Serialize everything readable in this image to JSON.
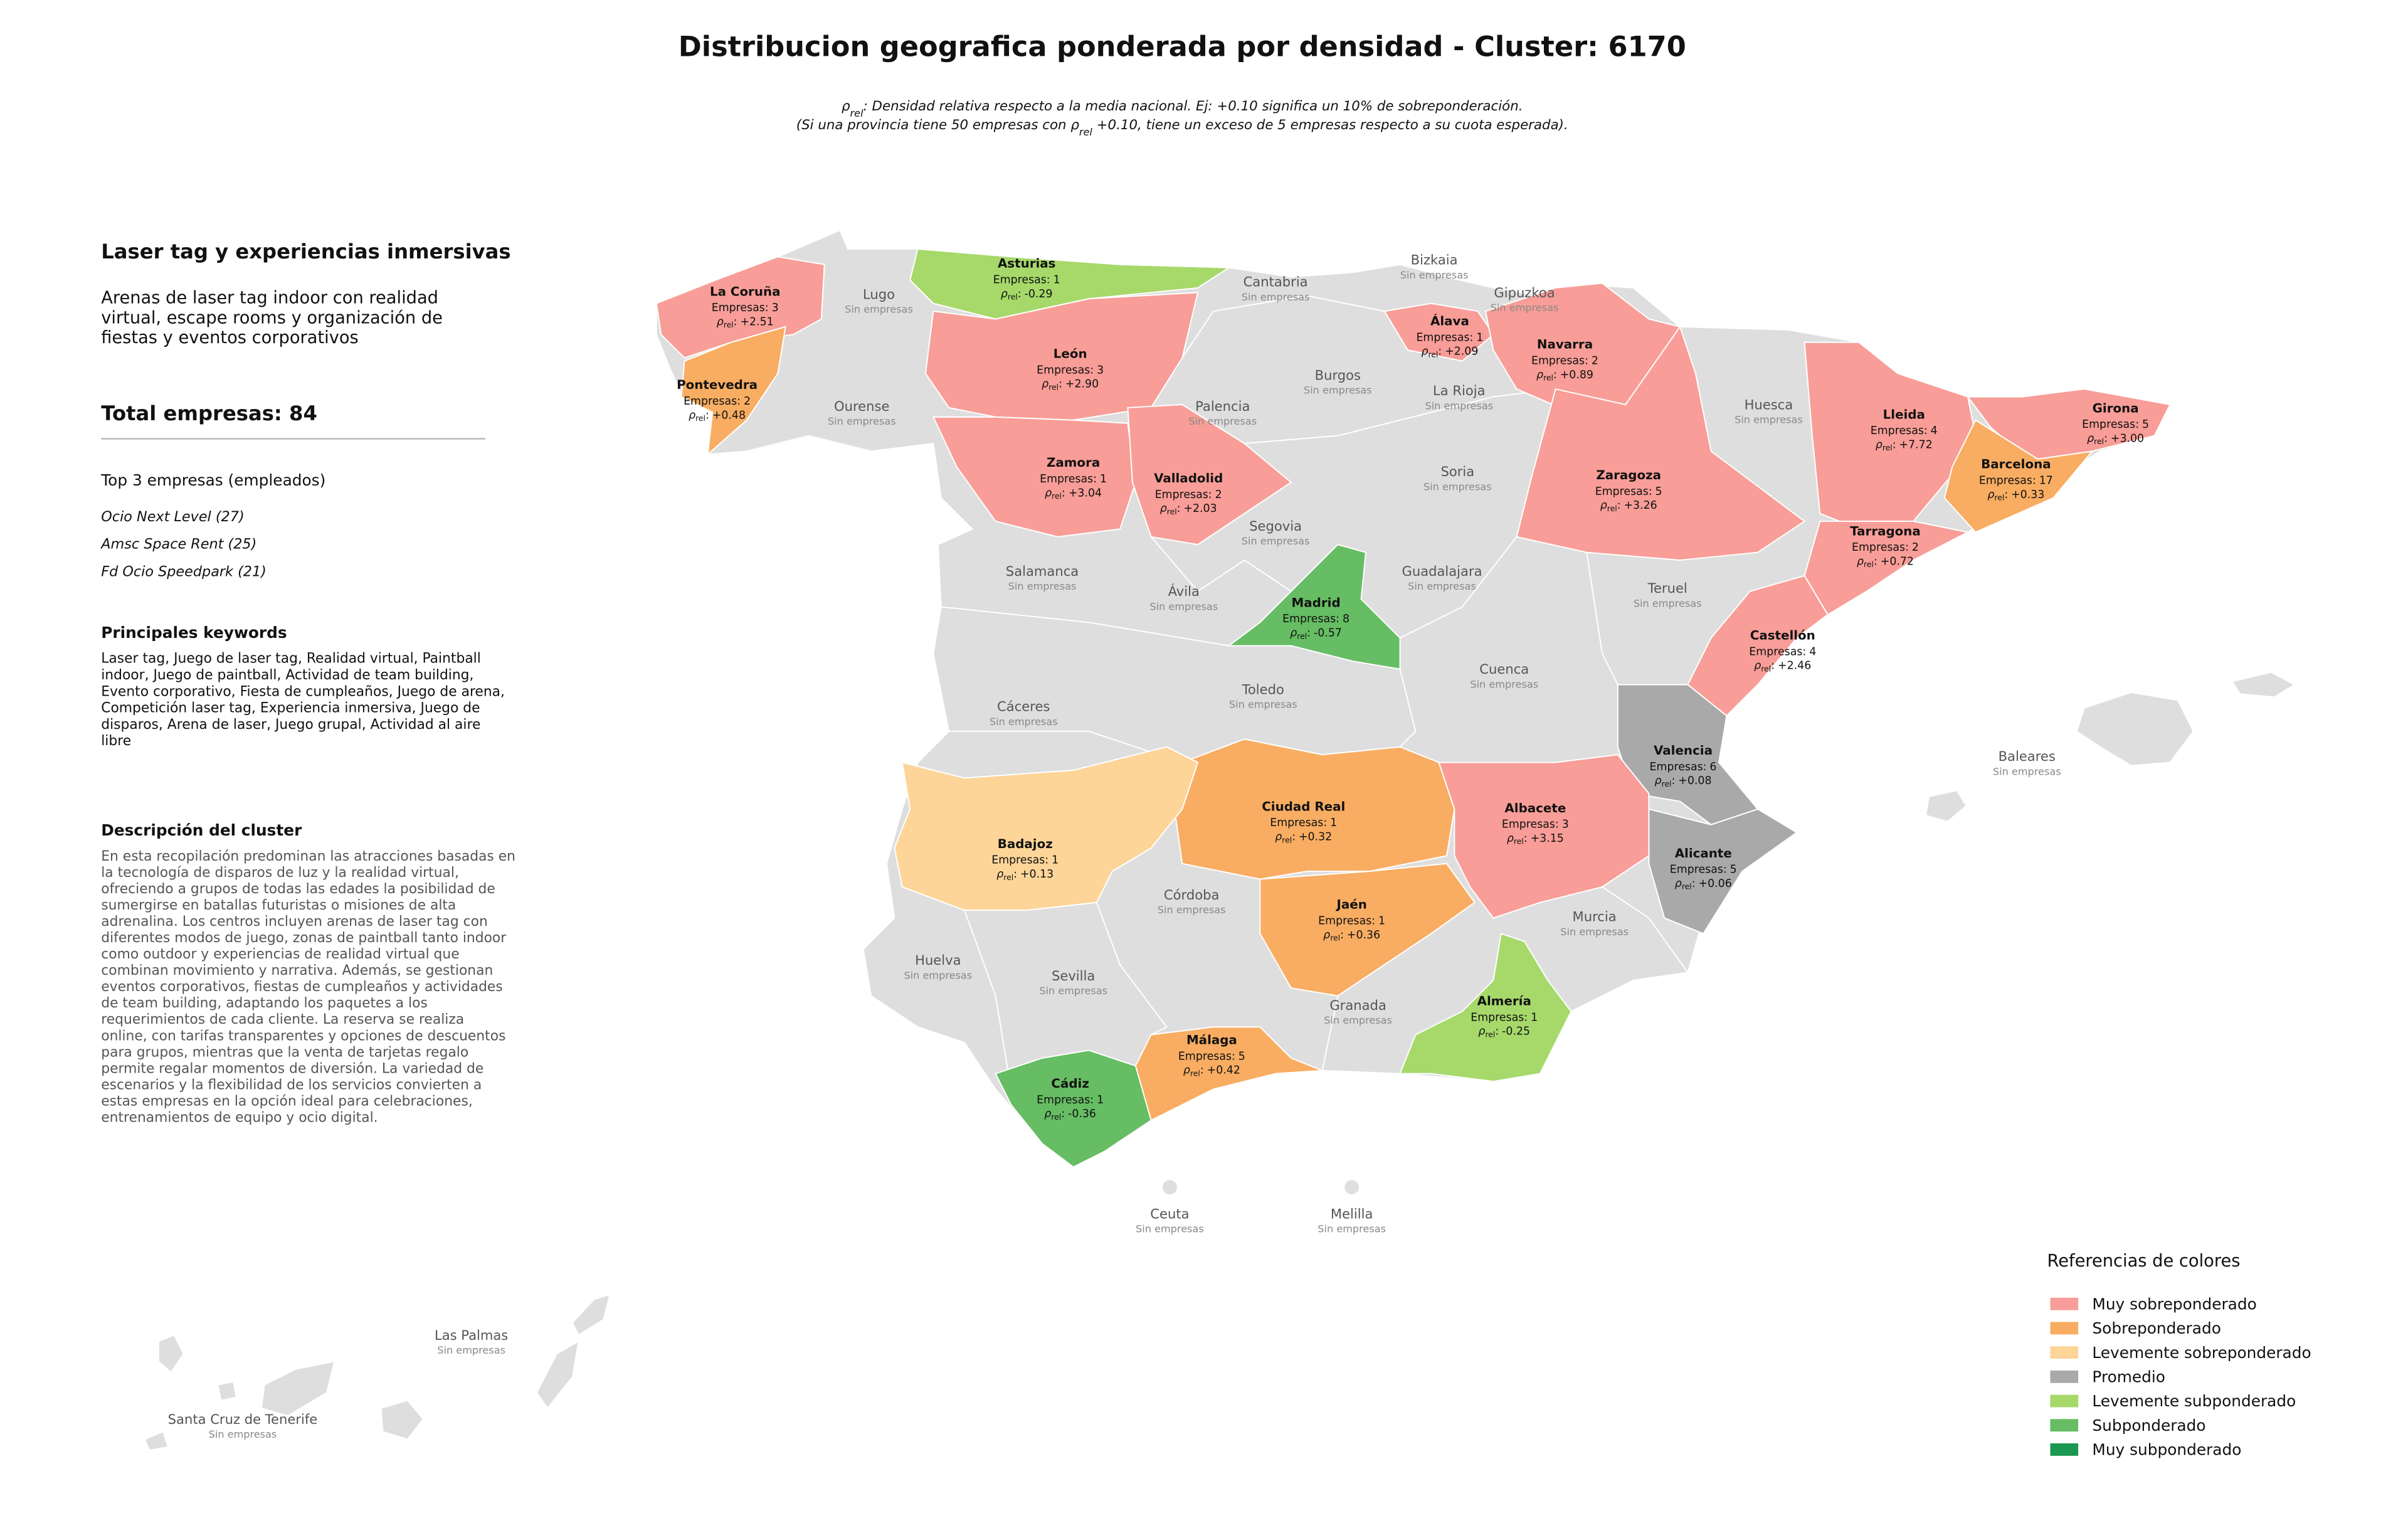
{
  "header": {
    "title": "Distribucion geografica ponderada por densidad - Cluster: 6170",
    "subtitle_lines": [
      [
        {
          "text": "ρ"
        },
        {
          "text": "rel",
          "sub": true
        },
        {
          "text": ": Densidad relativa respecto a la media nacional. Ej: +0.10 significa un 10% de sobreponderación."
        }
      ],
      [
        {
          "text": "(Si una provincia tiene 50 empresas con ρ"
        },
        {
          "text": "rel",
          "sub": true
        },
        {
          "text": " +0.10, tiene un exceso de 5 empresas respecto a su cuota esperada)."
        }
      ]
    ]
  },
  "panel": {
    "cluster_name": "Laser tag y experiencias inmersivas",
    "description_lines": [
      "Arenas de laser tag indoor con realidad",
      "virtual, escape rooms y organización de",
      "fiestas y eventos corporativos"
    ],
    "total_label": "Total empresas:",
    "total": 84,
    "top_title": "Top 3 empresas (empleados)",
    "top_companies": [
      "Ocio Next Level (27)",
      "Amsc Space Rent (25)",
      "Fd Ocio Speedpark (21)"
    ],
    "keywords_title": "Principales keywords",
    "keywords_lines": [
      "Laser tag, Juego de laser tag, Realidad virtual, Paintball",
      "indoor, Juego de paintball, Actividad de team building,",
      "Evento corporativo, Fiesta de cumpleaños, Juego de arena,",
      "Competición laser tag, Experiencia inmersiva, Juego de",
      "disparos, Arena de laser, Juego grupal, Actividad al aire",
      "libre"
    ],
    "cluster_description_title": "Descripción del cluster",
    "cluster_description_lines": [
      "En esta recopilación predominan las atracciones basadas en",
      "la tecnología de disparos de luz y la realidad virtual,",
      "ofreciendo a grupos de todas las edades la posibilidad de",
      "sumergirse en batallas futuristas o misiones de alta",
      "adrenalina. Los centros incluyen arenas de laser tag con",
      "diferentes modos de juego, zonas de paintball tanto indoor",
      "como outdoor y experiencias de realidad virtual que",
      "combinan movimiento y narrativa. Además, se gestionan",
      "eventos corporativos, fiestas de cumpleaños y actividades",
      "de team building, adaptando los paquetes a los",
      "requerimientos de cada cliente. La reserva se realiza",
      "online, con tarifas transparentes y opciones de descuentos",
      "para grupos, mientras que la venta de tarjetas regalo",
      "permite regalar momentos de diversión. La variedad de",
      "escenarios y la flexibilidad de los servicios convierten a",
      "estas empresas en la opción ideal para celebraciones,",
      "entrenamientos de equipo y ocio digital."
    ]
  },
  "map": {
    "companies_label": "Empresas:",
    "rho_label": {
      "symbol": "ρ",
      "subscript": "rel",
      "suffix": ":"
    },
    "no_companies_label": "Sin empresas",
    "no_data_color": "#dedede",
    "provinces": [
      {
        "name": "La Coruña",
        "companies": 3,
        "rho": 2.51,
        "rho_label": "+2.51",
        "category": 0
      },
      {
        "name": "Pontevedra",
        "companies": 2,
        "rho": 0.48,
        "rho_label": "+0.48",
        "category": 1
      },
      {
        "name": "Asturias",
        "companies": 1,
        "rho": -0.29,
        "rho_label": "-0.29",
        "category": 4
      },
      {
        "name": "León",
        "companies": 3,
        "rho": 2.9,
        "rho_label": "+2.90",
        "category": 0
      },
      {
        "name": "Zamora",
        "companies": 1,
        "rho": 3.04,
        "rho_label": "+3.04",
        "category": 0
      },
      {
        "name": "Valladolid",
        "companies": 2,
        "rho": 2.03,
        "rho_label": "+2.03",
        "category": 0
      },
      {
        "name": "Álava",
        "companies": 1,
        "rho": 2.09,
        "rho_label": "+2.09",
        "category": 0
      },
      {
        "name": "Navarra",
        "companies": 2,
        "rho": 0.89,
        "rho_label": "+0.89",
        "category": 0
      },
      {
        "name": "Zaragoza",
        "companies": 5,
        "rho": 3.26,
        "rho_label": "+3.26",
        "category": 0
      },
      {
        "name": "Lleida",
        "companies": 4,
        "rho": 7.72,
        "rho_label": "+7.72",
        "category": 0
      },
      {
        "name": "Girona",
        "companies": 5,
        "rho": 3.0,
        "rho_label": "+3.00",
        "category": 0
      },
      {
        "name": "Barcelona",
        "companies": 17,
        "rho": 0.33,
        "rho_label": "+0.33",
        "category": 1
      },
      {
        "name": "Tarragona",
        "companies": 2,
        "rho": 0.72,
        "rho_label": "+0.72",
        "category": 0
      },
      {
        "name": "Castellón",
        "companies": 4,
        "rho": 2.46,
        "rho_label": "+2.46",
        "category": 0
      },
      {
        "name": "Valencia",
        "companies": 6,
        "rho": 0.08,
        "rho_label": "+0.08",
        "category": 3
      },
      {
        "name": "Alicante",
        "companies": 5,
        "rho": 0.06,
        "rho_label": "+0.06",
        "category": 3
      },
      {
        "name": "Madrid",
        "companies": 8,
        "rho": -0.57,
        "rho_label": "-0.57",
        "category": 5
      },
      {
        "name": "Ciudad Real",
        "companies": 1,
        "rho": 0.32,
        "rho_label": "+0.32",
        "category": 1
      },
      {
        "name": "Albacete",
        "companies": 3,
        "rho": 3.15,
        "rho_label": "+3.15",
        "category": 0
      },
      {
        "name": "Badajoz",
        "companies": 1,
        "rho": 0.13,
        "rho_label": "+0.13",
        "category": 2
      },
      {
        "name": "Jaén",
        "companies": 1,
        "rho": 0.36,
        "rho_label": "+0.36",
        "category": 1
      },
      {
        "name": "Almería",
        "companies": 1,
        "rho": -0.25,
        "rho_label": "-0.25",
        "category": 4
      },
      {
        "name": "Málaga",
        "companies": 5,
        "rho": 0.42,
        "rho_label": "+0.42",
        "category": 1
      },
      {
        "name": "Cádiz",
        "companies": 1,
        "rho": -0.36,
        "rho_label": "-0.36",
        "category": 5
      },
      {
        "name": "Lugo"
      },
      {
        "name": "Cantabria"
      },
      {
        "name": "Bizkaia"
      },
      {
        "name": "Gipuzkoa"
      },
      {
        "name": "Burgos"
      },
      {
        "name": "Palencia"
      },
      {
        "name": "La Rioja"
      },
      {
        "name": "Huesca"
      },
      {
        "name": "Ourense"
      },
      {
        "name": "Soria"
      },
      {
        "name": "Segovia"
      },
      {
        "name": "Salamanca"
      },
      {
        "name": "Ávila"
      },
      {
        "name": "Guadalajara"
      },
      {
        "name": "Teruel"
      },
      {
        "name": "Toledo"
      },
      {
        "name": "Cuenca"
      },
      {
        "name": "Cáceres"
      },
      {
        "name": "Baleares"
      },
      {
        "name": "Córdoba"
      },
      {
        "name": "Huelva"
      },
      {
        "name": "Sevilla"
      },
      {
        "name": "Murcia"
      },
      {
        "name": "Granada"
      },
      {
        "name": "Ceuta"
      },
      {
        "name": "Melilla"
      },
      {
        "name": "Las Palmas"
      },
      {
        "name": "Santa Cruz de Tenerife"
      }
    ]
  },
  "legend": {
    "title": "Referencias de colores",
    "items": [
      {
        "name": "Muy sobreponderado",
        "color": "#f89d97"
      },
      {
        "name": "Sobreponderado",
        "color": "#f8ad62"
      },
      {
        "name": "Levemente sobreponderado",
        "color": "#fdd598"
      },
      {
        "name": "Promedio",
        "color": "#a9a9a9"
      },
      {
        "name": "Levemente subponderado",
        "color": "#a6d96a"
      },
      {
        "name": "Subponderado",
        "color": "#66bd63"
      },
      {
        "name": "Muy subponderado",
        "color": "#1a9850"
      }
    ]
  }
}
